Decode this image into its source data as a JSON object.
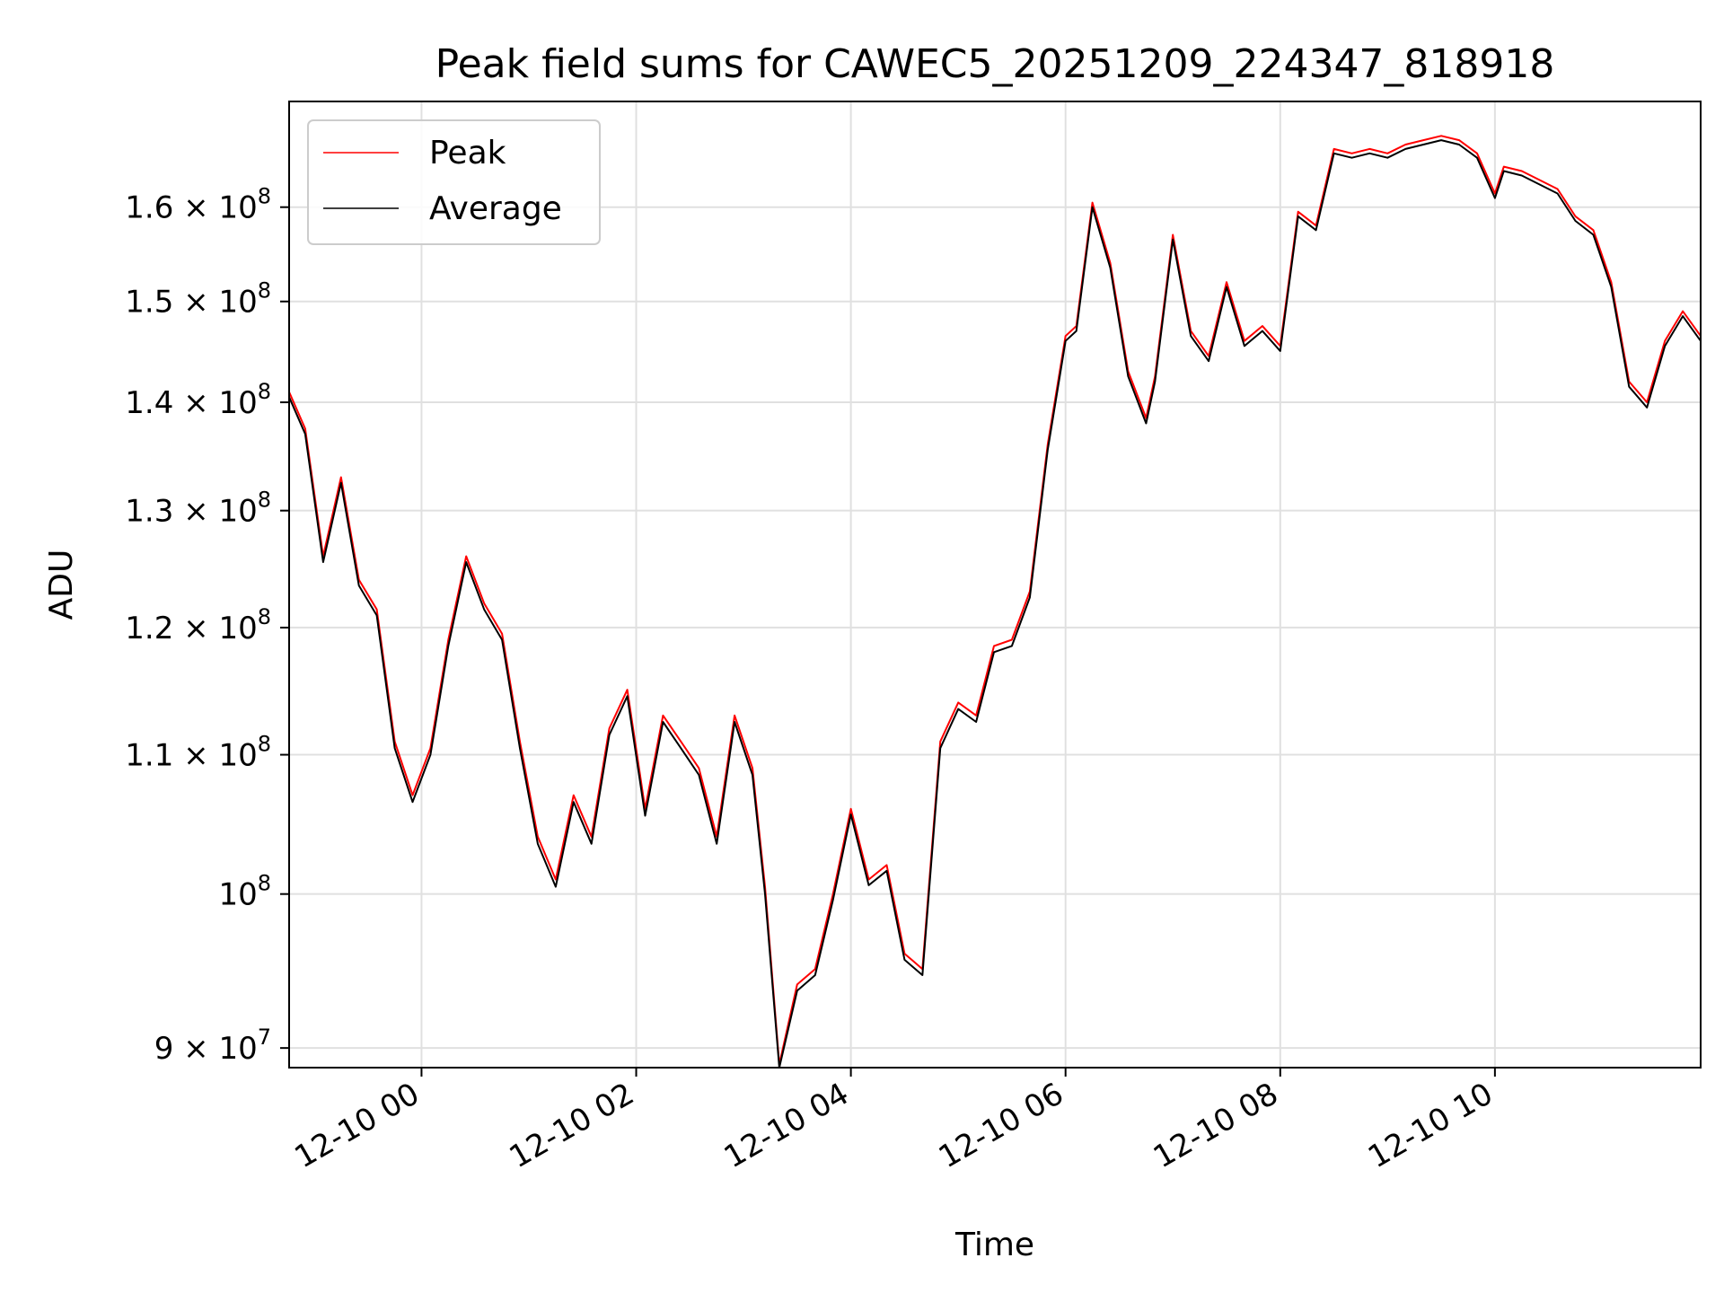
{
  "chart_data": {
    "type": "line",
    "title": "Peak field sums for CAWEC5_20251209_224347_818918",
    "xlabel": "Time",
    "ylabel": "ADU",
    "y_scale": "log",
    "grid": true,
    "legend_position": "top-left",
    "xlim": [
      "2025-12-09 22:46",
      "2025-12-10 11:55"
    ],
    "ylim": [
      88800000,
      172000000
    ],
    "x_ticks": [
      {
        "label": "12-10 00",
        "value": "2025-12-10 00:00"
      },
      {
        "label": "12-10 02",
        "value": "2025-12-10 02:00"
      },
      {
        "label": "12-10 04",
        "value": "2025-12-10 04:00"
      },
      {
        "label": "12-10 06",
        "value": "2025-12-10 06:00"
      },
      {
        "label": "12-10 08",
        "value": "2025-12-10 08:00"
      },
      {
        "label": "12-10 10",
        "value": "2025-12-10 10:00"
      }
    ],
    "y_ticks": [
      {
        "mantissa": "9",
        "exponent": "7",
        "value": 90000000
      },
      {
        "mantissa": "",
        "exponent": "8",
        "value": 100000000
      },
      {
        "mantissa": "1.1",
        "exponent": "8",
        "value": 110000000
      },
      {
        "mantissa": "1.2",
        "exponent": "8",
        "value": 120000000
      },
      {
        "mantissa": "1.3",
        "exponent": "8",
        "value": 130000000
      },
      {
        "mantissa": "1.4",
        "exponent": "8",
        "value": 140000000
      },
      {
        "mantissa": "1.5",
        "exponent": "8",
        "value": 150000000
      },
      {
        "mantissa": "1.6",
        "exponent": "8",
        "value": 160000000
      }
    ],
    "series": [
      {
        "name": "Peak",
        "color": "#ff0000",
        "x": [
          "2025-12-09 22:46",
          "2025-12-09 22:55",
          "2025-12-09 23:05",
          "2025-12-09 23:15",
          "2025-12-09 23:25",
          "2025-12-09 23:35",
          "2025-12-09 23:45",
          "2025-12-09 23:55",
          "2025-12-10 00:05",
          "2025-12-10 00:15",
          "2025-12-10 00:25",
          "2025-12-10 00:35",
          "2025-12-10 00:45",
          "2025-12-10 00:55",
          "2025-12-10 01:05",
          "2025-12-10 01:15",
          "2025-12-10 01:25",
          "2025-12-10 01:35",
          "2025-12-10 01:45",
          "2025-12-10 01:55",
          "2025-12-10 02:05",
          "2025-12-10 02:15",
          "2025-12-10 02:25",
          "2025-12-10 02:35",
          "2025-12-10 02:45",
          "2025-12-10 02:55",
          "2025-12-10 03:05",
          "2025-12-10 03:12",
          "2025-12-10 03:20",
          "2025-12-10 03:30",
          "2025-12-10 03:40",
          "2025-12-10 03:50",
          "2025-12-10 04:00",
          "2025-12-10 04:10",
          "2025-12-10 04:20",
          "2025-12-10 04:30",
          "2025-12-10 04:40",
          "2025-12-10 04:50",
          "2025-12-10 05:00",
          "2025-12-10 05:10",
          "2025-12-10 05:20",
          "2025-12-10 05:30",
          "2025-12-10 05:40",
          "2025-12-10 05:50",
          "2025-12-10 06:00",
          "2025-12-10 06:06",
          "2025-12-10 06:15",
          "2025-12-10 06:25",
          "2025-12-10 06:35",
          "2025-12-10 06:45",
          "2025-12-10 06:50",
          "2025-12-10 07:00",
          "2025-12-10 07:10",
          "2025-12-10 07:20",
          "2025-12-10 07:30",
          "2025-12-10 07:40",
          "2025-12-10 07:50",
          "2025-12-10 08:00",
          "2025-12-10 08:10",
          "2025-12-10 08:20",
          "2025-12-10 08:30",
          "2025-12-10 08:40",
          "2025-12-10 08:50",
          "2025-12-10 09:00",
          "2025-12-10 09:10",
          "2025-12-10 09:20",
          "2025-12-10 09:30",
          "2025-12-10 09:40",
          "2025-12-10 09:50",
          "2025-12-10 10:00",
          "2025-12-10 10:05",
          "2025-12-10 10:15",
          "2025-12-10 10:25",
          "2025-12-10 10:35",
          "2025-12-10 10:45",
          "2025-12-10 10:55",
          "2025-12-10 11:05",
          "2025-12-10 11:15",
          "2025-12-10 11:25",
          "2025-12-10 11:35",
          "2025-12-10 11:45",
          "2025-12-10 11:55"
        ],
        "y": [
          141000000,
          137500000,
          126000000,
          133000000,
          124000000,
          121500000,
          111000000,
          107000000,
          110500000,
          119000000,
          126000000,
          122000000,
          119500000,
          111000000,
          104000000,
          101000000,
          107000000,
          104000000,
          112000000,
          115000000,
          106000000,
          113000000,
          111000000,
          109000000,
          104000000,
          113000000,
          109000000,
          100500000,
          89000000,
          94000000,
          95000000,
          100000000,
          106000000,
          101000000,
          102000000,
          96000000,
          95000000,
          111000000,
          114000000,
          113000000,
          118500000,
          119000000,
          123000000,
          136000000,
          146500000,
          147500000,
          160500000,
          154000000,
          143000000,
          138500000,
          142500000,
          157000000,
          147000000,
          144500000,
          152000000,
          146000000,
          147500000,
          145500000,
          159500000,
          158000000,
          166500000,
          166000000,
          166500000,
          166000000,
          167000000,
          167500000,
          168000000,
          167500000,
          166000000,
          161500000,
          164500000,
          164000000,
          163000000,
          162000000,
          159000000,
          157500000,
          152000000,
          142000000,
          140000000,
          146000000,
          149000000,
          146500000
        ]
      },
      {
        "name": "Average",
        "color": "#000000",
        "x": [
          "2025-12-09 22:46",
          "2025-12-09 22:55",
          "2025-12-09 23:05",
          "2025-12-09 23:15",
          "2025-12-09 23:25",
          "2025-12-09 23:35",
          "2025-12-09 23:45",
          "2025-12-09 23:55",
          "2025-12-10 00:05",
          "2025-12-10 00:15",
          "2025-12-10 00:25",
          "2025-12-10 00:35",
          "2025-12-10 00:45",
          "2025-12-10 00:55",
          "2025-12-10 01:05",
          "2025-12-10 01:15",
          "2025-12-10 01:25",
          "2025-12-10 01:35",
          "2025-12-10 01:45",
          "2025-12-10 01:55",
          "2025-12-10 02:05",
          "2025-12-10 02:15",
          "2025-12-10 02:25",
          "2025-12-10 02:35",
          "2025-12-10 02:45",
          "2025-12-10 02:55",
          "2025-12-10 03:05",
          "2025-12-10 03:12",
          "2025-12-10 03:20",
          "2025-12-10 03:30",
          "2025-12-10 03:40",
          "2025-12-10 03:50",
          "2025-12-10 04:00",
          "2025-12-10 04:10",
          "2025-12-10 04:20",
          "2025-12-10 04:30",
          "2025-12-10 04:40",
          "2025-12-10 04:50",
          "2025-12-10 05:00",
          "2025-12-10 05:10",
          "2025-12-10 05:20",
          "2025-12-10 05:30",
          "2025-12-10 05:40",
          "2025-12-10 05:50",
          "2025-12-10 06:00",
          "2025-12-10 06:06",
          "2025-12-10 06:15",
          "2025-12-10 06:25",
          "2025-12-10 06:35",
          "2025-12-10 06:45",
          "2025-12-10 06:50",
          "2025-12-10 07:00",
          "2025-12-10 07:10",
          "2025-12-10 07:20",
          "2025-12-10 07:30",
          "2025-12-10 07:40",
          "2025-12-10 07:50",
          "2025-12-10 08:00",
          "2025-12-10 08:10",
          "2025-12-10 08:20",
          "2025-12-10 08:30",
          "2025-12-10 08:40",
          "2025-12-10 08:50",
          "2025-12-10 09:00",
          "2025-12-10 09:10",
          "2025-12-10 09:20",
          "2025-12-10 09:30",
          "2025-12-10 09:40",
          "2025-12-10 09:50",
          "2025-12-10 10:00",
          "2025-12-10 10:05",
          "2025-12-10 10:15",
          "2025-12-10 10:25",
          "2025-12-10 10:35",
          "2025-12-10 10:45",
          "2025-12-10 10:55",
          "2025-12-10 11:05",
          "2025-12-10 11:15",
          "2025-12-10 11:25",
          "2025-12-10 11:35",
          "2025-12-10 11:45",
          "2025-12-10 11:55"
        ],
        "y": [
          140500000,
          137000000,
          125500000,
          132500000,
          123500000,
          121000000,
          110500000,
          106500000,
          110000000,
          118500000,
          125500000,
          121500000,
          119000000,
          110500000,
          103500000,
          100500000,
          106500000,
          103500000,
          111500000,
          114500000,
          105500000,
          112500000,
          110500000,
          108500000,
          103500000,
          112500000,
          108500000,
          100000000,
          88800000,
          93600000,
          94600000,
          99600000,
          105600000,
          100600000,
          101600000,
          95600000,
          94600000,
          110500000,
          113500000,
          112500000,
          118000000,
          118500000,
          122500000,
          135500000,
          146000000,
          147000000,
          160000000,
          153500000,
          142500000,
          138000000,
          142000000,
          156500000,
          146500000,
          144000000,
          151500000,
          145500000,
          147000000,
          145000000,
          159000000,
          157500000,
          166000000,
          165500000,
          166000000,
          165500000,
          166500000,
          167000000,
          167500000,
          167000000,
          165500000,
          161000000,
          164000000,
          163500000,
          162500000,
          161500000,
          158500000,
          157000000,
          151500000,
          141500000,
          139500000,
          145500000,
          148500000,
          146000000
        ]
      }
    ]
  }
}
